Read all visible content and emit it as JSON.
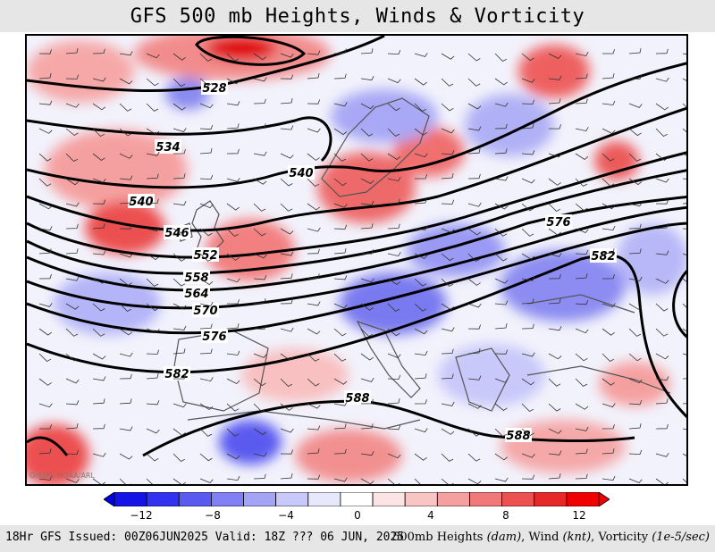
{
  "title": "GFS 500 mb Heights, Winds & Vorticity",
  "credit": "GrADS: NOAA/ARL",
  "footer": {
    "left": "18Hr GFS Issued: 00Z06JUN2025 Valid: 18Z ??? 06 JUN, 2025",
    "right_main": "500mb Heights ",
    "right_u1": "(dam)",
    "right_sep1": ", Wind ",
    "right_u2": "(knt)",
    "right_sep2": ", Vorticity ",
    "right_u3": "(1e-5/sec)"
  },
  "colorbar": {
    "colors": [
      "#1414e6",
      "#3232f0",
      "#5a5af0",
      "#8080f4",
      "#a4a4f6",
      "#c8c8fa",
      "#e8e8fc",
      "#ffffff",
      "#fce4e4",
      "#f9c4c4",
      "#f5a0a0",
      "#f07878",
      "#ec5050",
      "#e62828",
      "#f00000"
    ],
    "labels": [
      {
        "text": "−12",
        "value": -12
      },
      {
        "text": "−8",
        "value": -8
      },
      {
        "text": "−4",
        "value": -4
      },
      {
        "text": "0",
        "value": 0
      },
      {
        "text": "4",
        "value": 4
      },
      {
        "text": "8",
        "value": 8
      },
      {
        "text": "12",
        "value": 12
      }
    ],
    "min": -14,
    "max": 14
  },
  "contours": [
    "528",
    "534",
    "540",
    "546",
    "552",
    "558",
    "564",
    "570",
    "576",
    "582",
    "588",
    "588",
    "582",
    "576",
    "540"
  ],
  "colors": {
    "contour": "#000000",
    "coast": "#555555",
    "positive": "#ee3c3c",
    "negative": "#4a5cf0"
  }
}
